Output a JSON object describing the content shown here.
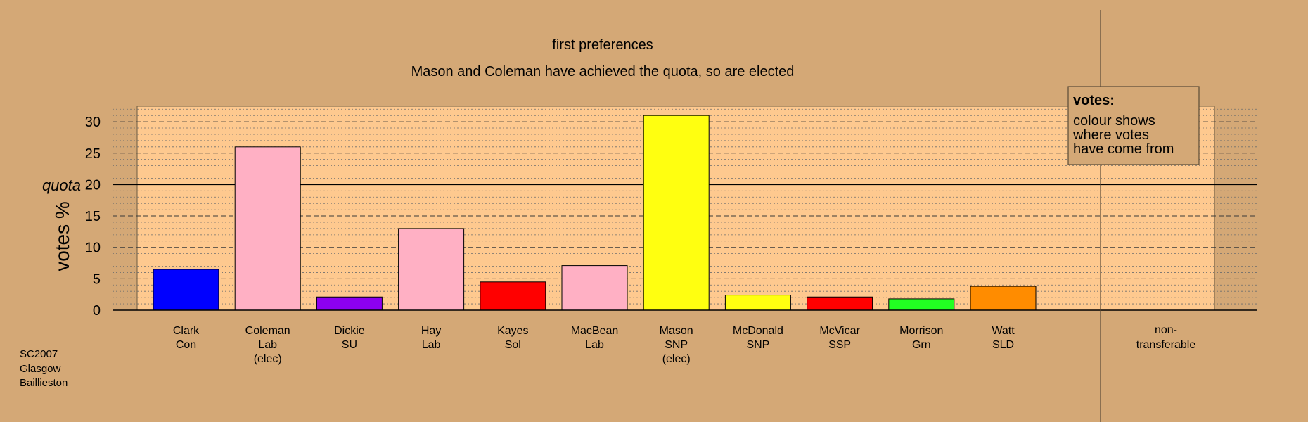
{
  "chart_data": {
    "type": "bar",
    "title": "first preferences",
    "subtitle": "Mason and Coleman have achieved the quota, so are elected",
    "ylabel": "votes %",
    "quota_label": "quota",
    "quota": 20,
    "ylim": [
      0,
      32
    ],
    "yticks": [
      0,
      5,
      10,
      15,
      20,
      25,
      30
    ],
    "grid": true,
    "categories": [
      {
        "name": "Clark",
        "party": "Con",
        "note": "",
        "value": 6.5,
        "color": "#0000ff"
      },
      {
        "name": "Coleman",
        "party": "Lab",
        "note": "(elec)",
        "value": 26,
        "color": "#ffb0c4"
      },
      {
        "name": "Dickie",
        "party": "SU",
        "note": "",
        "value": 2.1,
        "color": "#8c00f0"
      },
      {
        "name": "Hay",
        "party": "Lab",
        "note": "",
        "value": 13,
        "color": "#ffb0c4"
      },
      {
        "name": "Kayes",
        "party": "Sol",
        "note": "",
        "value": 4.5,
        "color": "#ff0000"
      },
      {
        "name": "MacBean",
        "party": "Lab",
        "note": "",
        "value": 7.1,
        "color": "#ffb0c4"
      },
      {
        "name": "Mason",
        "party": "SNP",
        "note": "(elec)",
        "value": 31,
        "color": "#ffff10"
      },
      {
        "name": "McDonald",
        "party": "SNP",
        "note": "",
        "value": 2.4,
        "color": "#ffff10"
      },
      {
        "name": "McVicar",
        "party": "SSP",
        "note": "",
        "value": 2.1,
        "color": "#ff0000"
      },
      {
        "name": "Morrison",
        "party": "Grn",
        "note": "",
        "value": 1.8,
        "color": "#22ff22"
      },
      {
        "name": "Watt",
        "party": "SLD",
        "note": "",
        "value": 3.8,
        "color": "#ff8c00"
      }
    ],
    "nontransferable_label": [
      "non-",
      "transferable"
    ],
    "legend": {
      "position": "top-right",
      "title": "votes:",
      "lines": [
        "colour shows",
        "where votes",
        "have come from"
      ]
    },
    "footnote": [
      "SC2007",
      "Glasgow",
      "Baillieston"
    ]
  }
}
